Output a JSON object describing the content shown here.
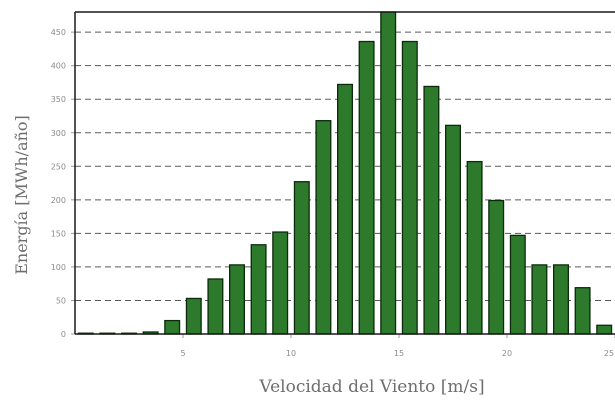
{
  "chart_data": {
    "type": "bar",
    "xlabel": "Velocidad del Viento [m/s]",
    "ylabel": "Energía [MWh/año]",
    "x": [
      1,
      2,
      3,
      4,
      5,
      6,
      7,
      8,
      9,
      10,
      11,
      12,
      13,
      14,
      15,
      16,
      17,
      18,
      19,
      20,
      21,
      22,
      23,
      24,
      25
    ],
    "values": [
      0,
      0,
      0,
      3,
      20,
      53,
      82,
      103,
      133,
      152,
      227,
      318,
      372,
      436,
      480,
      436,
      369,
      311,
      257,
      199,
      147,
      103,
      103,
      69,
      13
    ],
    "xticks": [
      "5",
      "10",
      "15",
      "20",
      "25"
    ],
    "yticks": [
      "0",
      "50",
      "100",
      "150",
      "200",
      "250",
      "300",
      "350",
      "400",
      "450"
    ],
    "xlim": [
      0,
      25
    ],
    "ylim": [
      0,
      480
    ],
    "grid": "horizontal-dashed",
    "bar_color": "#2d7a2d",
    "bar_edge_color": "#0b2a0b"
  }
}
